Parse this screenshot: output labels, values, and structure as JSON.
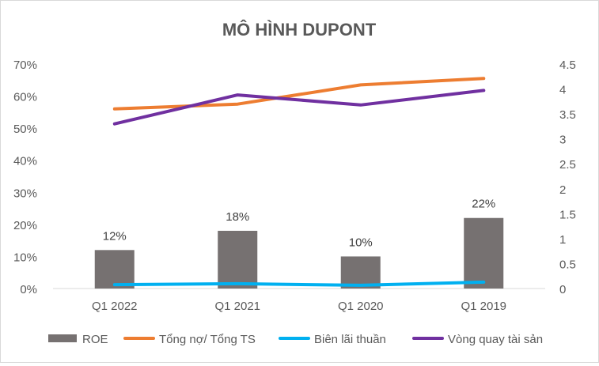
{
  "chart_data": {
    "type": "bar+line",
    "title": "MÔ HÌNH DUPONT",
    "categories": [
      "Q1 2022",
      "Q1 2021",
      "Q1 2020",
      "Q1 2019"
    ],
    "bar_series": {
      "name": "ROE",
      "axis": "left",
      "values": [
        0.12,
        0.18,
        0.1,
        0.22
      ],
      "labels": [
        "12%",
        "18%",
        "10%",
        "22%"
      ],
      "color": "#767171"
    },
    "line_series": [
      {
        "name": "Tổng nợ/ Tổng TS",
        "axis": "left",
        "values": [
          0.56,
          0.575,
          0.635,
          0.655
        ],
        "color": "#ed7d31"
      },
      {
        "name": "Biên lãi thuần",
        "axis": "left",
        "values": [
          0.012,
          0.015,
          0.01,
          0.02
        ],
        "color": "#00b0f0"
      },
      {
        "name": "Vòng quay tài sản",
        "axis": "right",
        "values": [
          3.3,
          3.88,
          3.68,
          3.97
        ],
        "color": "#7030a0"
      }
    ],
    "y_left": {
      "min": 0,
      "max": 0.7,
      "ticks": [
        "0%",
        "10%",
        "20%",
        "30%",
        "40%",
        "50%",
        "60%",
        "70%"
      ]
    },
    "y_right": {
      "min": 0,
      "max": 4.5,
      "ticks": [
        "0",
        "0.5",
        "1",
        "1.5",
        "2",
        "2.5",
        "3",
        "3.5",
        "4",
        "4.5"
      ]
    },
    "legend": [
      "ROE",
      "Tổng nợ/ Tổng TS",
      "Biên lãi thuần",
      "Vòng quay tài sản"
    ],
    "legend_position": "bottom",
    "grid": false
  }
}
